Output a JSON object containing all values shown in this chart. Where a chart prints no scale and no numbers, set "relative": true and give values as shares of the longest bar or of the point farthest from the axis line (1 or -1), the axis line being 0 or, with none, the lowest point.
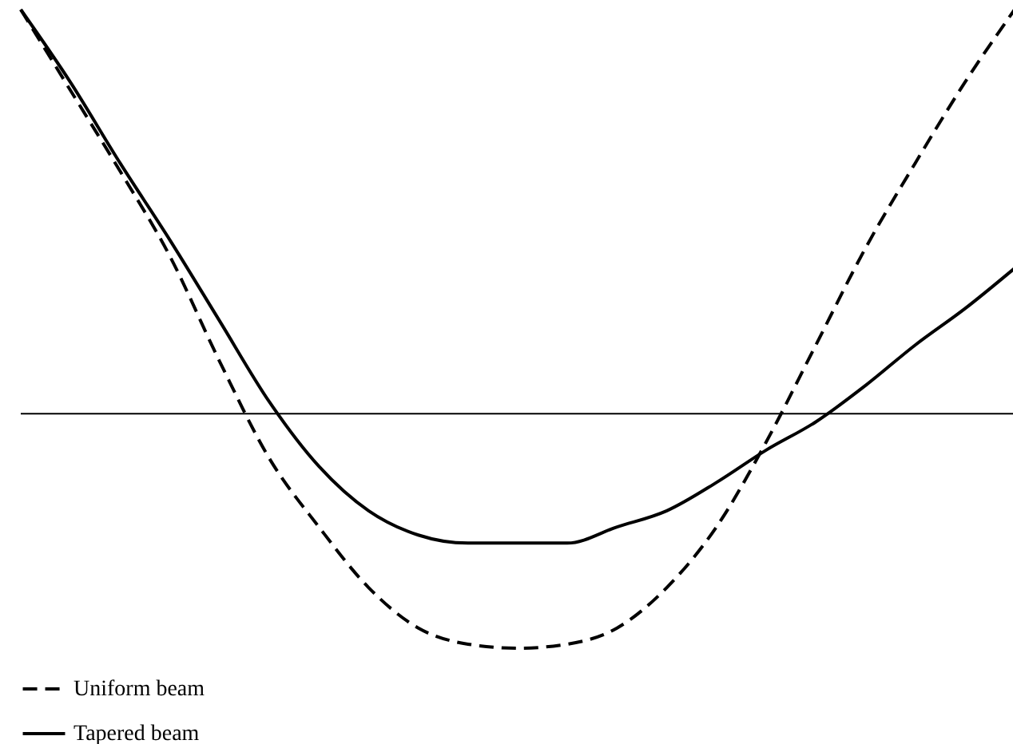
{
  "chart_data": {
    "type": "line",
    "relative": true,
    "legend": "bottom left",
    "categories": [
      null,
      null,
      null,
      null,
      null,
      null,
      null,
      null,
      null,
      null,
      null,
      null,
      null,
      null,
      null,
      null,
      null,
      null,
      null,
      null,
      null
    ],
    "series": [
      {
        "name": "Uniform beam",
        "color": "#000000",
        "line_style": "dashed",
        "values": [
          1,
          0.8,
          0.6,
          0.39,
          0.13,
          -0.11,
          -0.28,
          -0.43,
          -0.53,
          -0.57,
          -0.58,
          -0.57,
          -0.53,
          -0.43,
          -0.28,
          -0.07,
          0.17,
          0.41,
          0.62,
          0.82,
          1
        ]
      },
      {
        "name": "Tapered beam",
        "color": "#000000",
        "line_style": "solid",
        "values": [
          1,
          0.82,
          0.62,
          0.43,
          0.23,
          0.03,
          -0.13,
          -0.24,
          -0.3,
          -0.32,
          -0.32,
          -0.32,
          -0.28,
          -0.24,
          -0.17,
          -0.09,
          -0.02,
          0.07,
          0.17,
          0.26,
          0.36
        ]
      }
    ]
  }
}
